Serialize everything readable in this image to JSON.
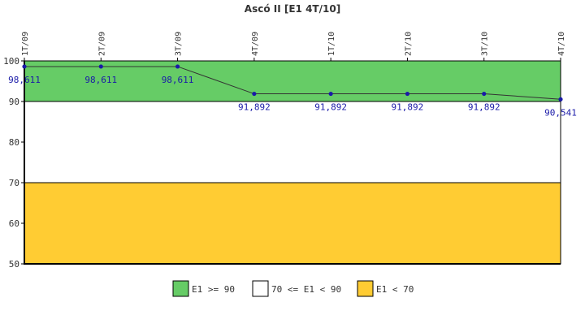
{
  "chart_data": {
    "type": "line",
    "title": "Ascó II [E1 4T/10]",
    "xlabel": "",
    "ylabel": "",
    "categories": [
      "1T/09",
      "2T/09",
      "3T/09",
      "4T/09",
      "1T/10",
      "2T/10",
      "3T/10",
      "4T/10"
    ],
    "series": [
      {
        "values": [
          98.611,
          98.611,
          98.611,
          91.892,
          91.892,
          91.892,
          91.892,
          90.541
        ],
        "labels": [
          "98,611",
          "98,611",
          "98,611",
          "91,892",
          "91,892",
          "91,892",
          "91,892",
          "90,541"
        ],
        "color": "#1a1aa8",
        "line_color": "#333333"
      }
    ],
    "ylim": [
      50,
      100
    ],
    "yticks": [
      "50",
      "60",
      "70",
      "80",
      "90",
      "100"
    ],
    "bands": [
      {
        "from": 90,
        "to": 100,
        "color": "#66cc66",
        "label": "E1 >= 90"
      },
      {
        "from": 70,
        "to": 90,
        "color": "#ffffff",
        "label": "70 <= E1 < 90"
      },
      {
        "from": 50,
        "to": 70,
        "color": "#ffcc33",
        "label": "E1 < 70"
      }
    ],
    "legend_position": "bottom",
    "grid": false
  }
}
